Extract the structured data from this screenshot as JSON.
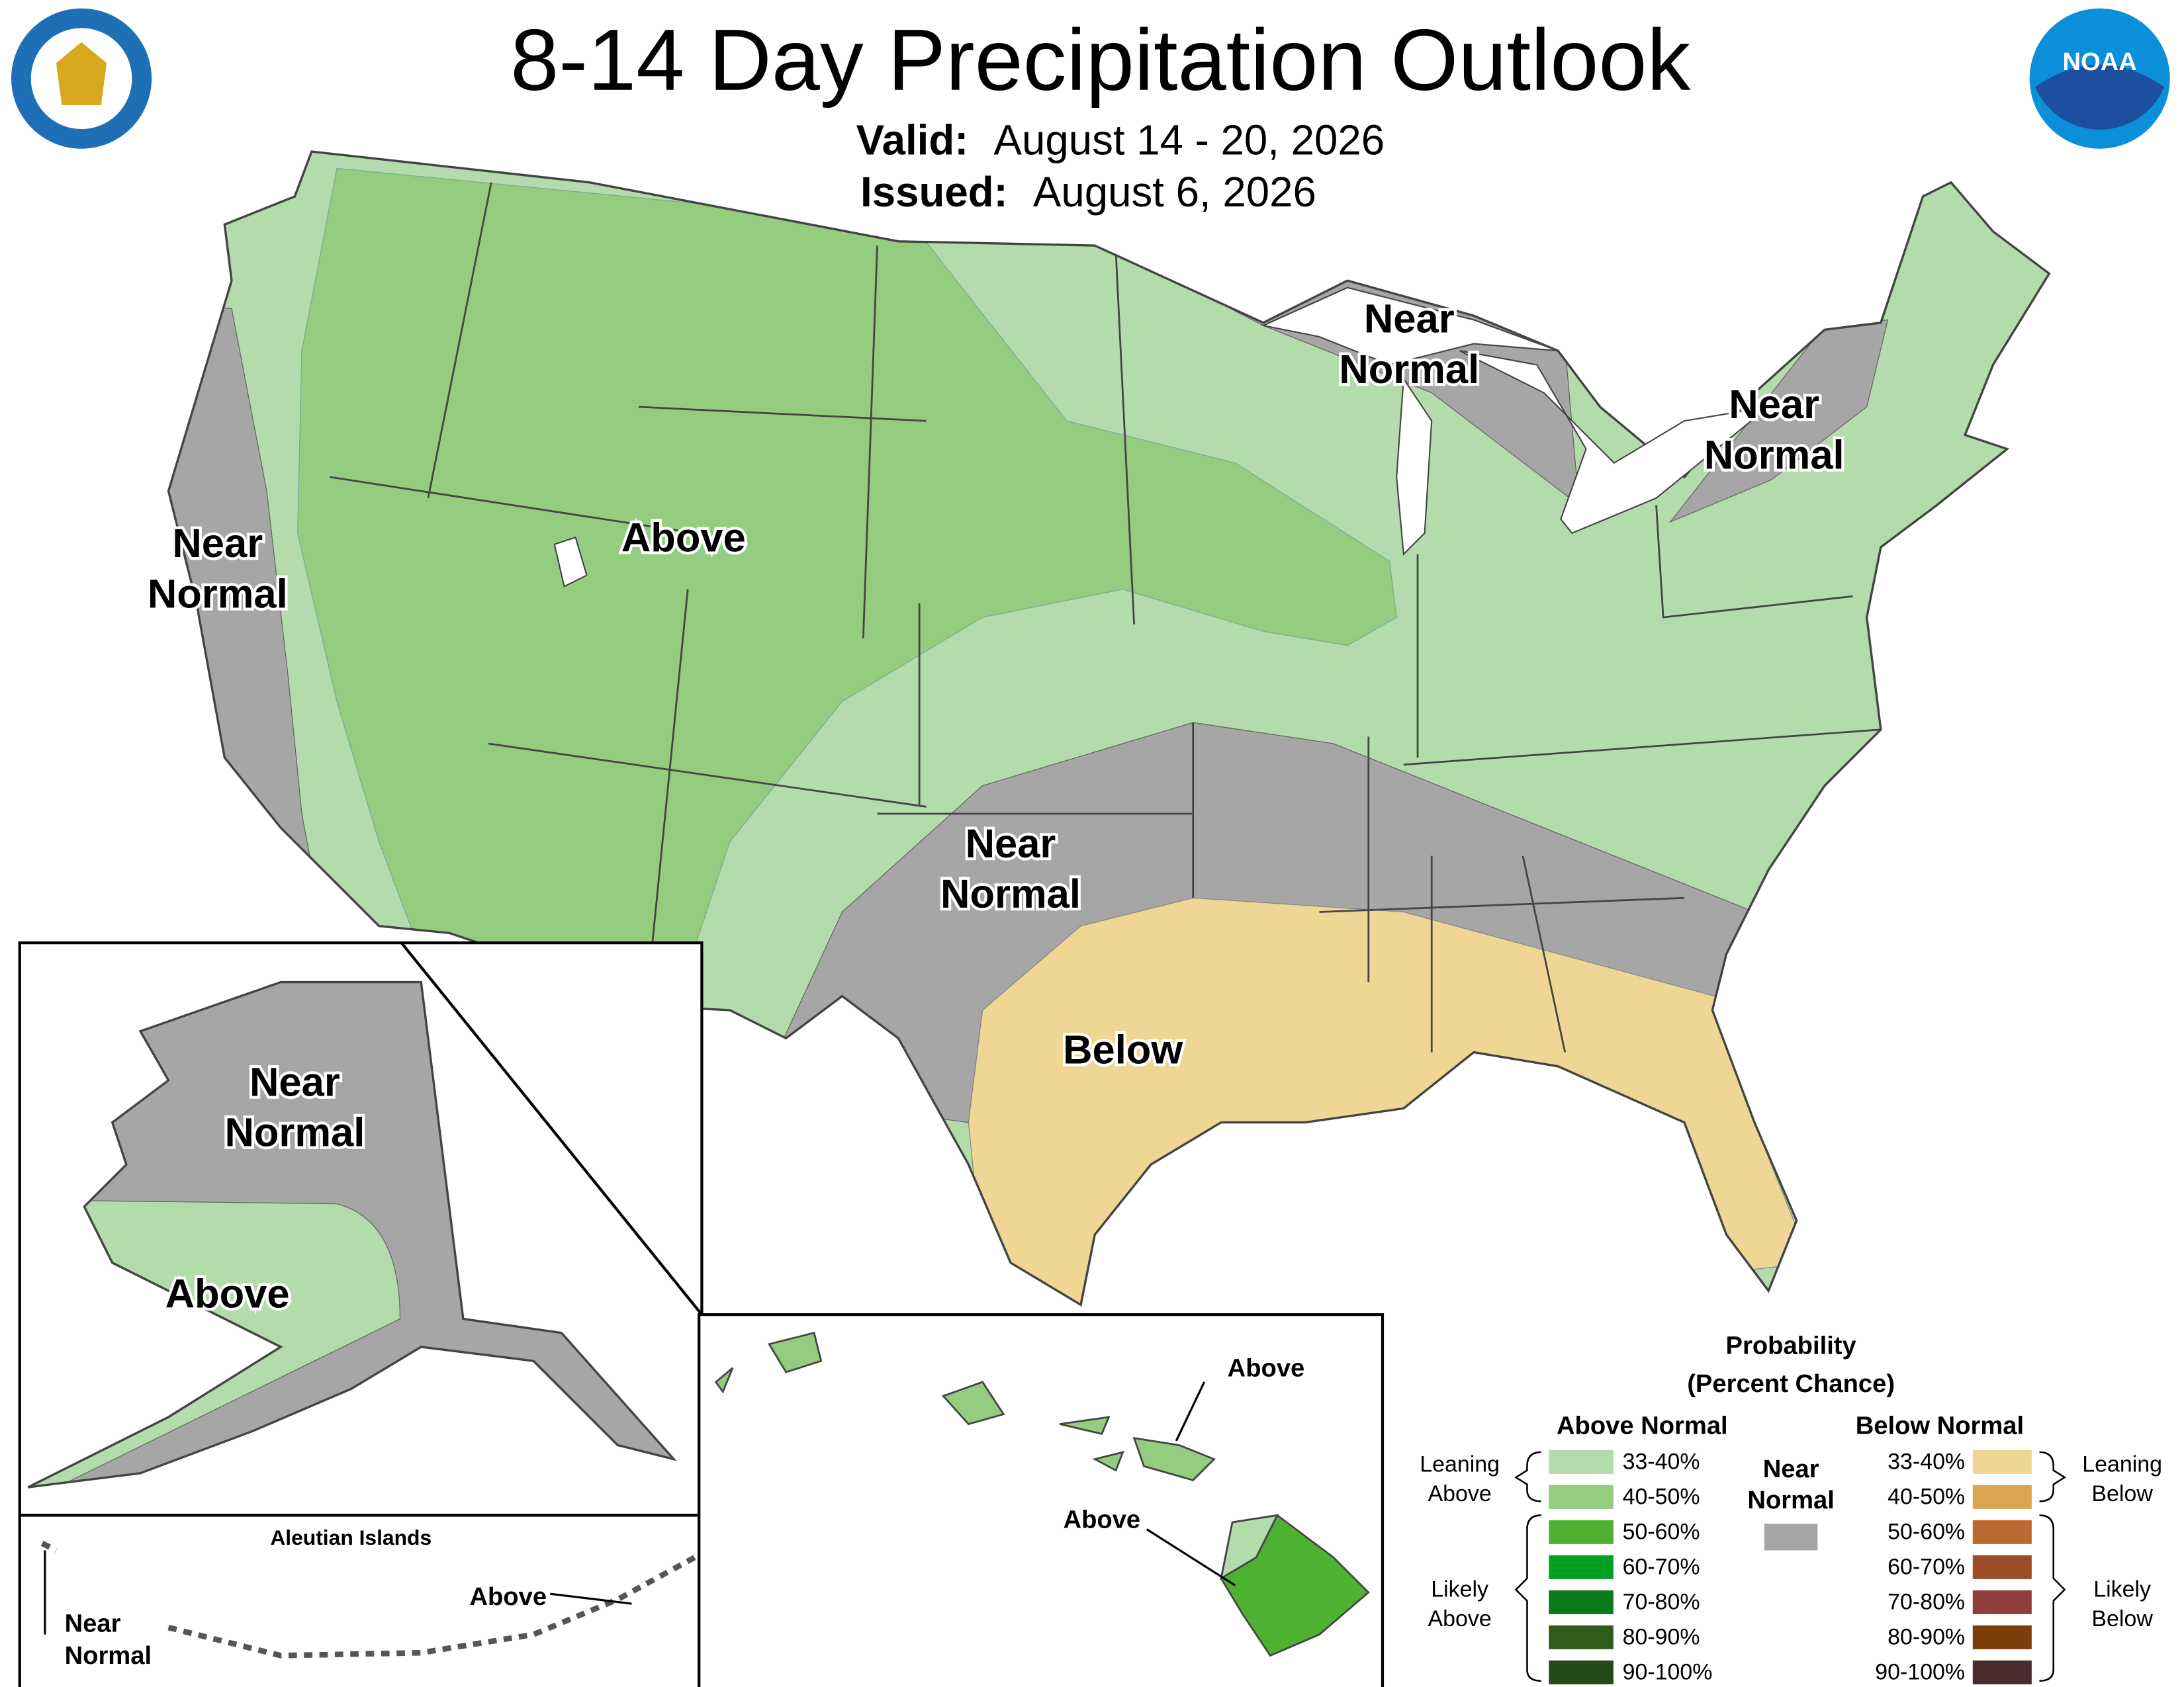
{
  "header": {
    "title": "8-14 Day Precipitation Outlook",
    "valid_label": "Valid:",
    "valid": "August 14 - 20, 2026",
    "issued_label": "Issued:",
    "issued": "August 6, 2026"
  },
  "logos": {
    "noaa": "NOAA"
  },
  "map_labels": {
    "conus": [
      {
        "lines": [
          "Near",
          "Normal"
        ]
      },
      {
        "lines": [
          "Above"
        ]
      },
      {
        "lines": [
          "Near",
          "Normal"
        ]
      },
      {
        "lines": [
          "Near",
          "Normal"
        ]
      },
      {
        "lines": [
          "Near",
          "Normal"
        ]
      },
      {
        "lines": [
          "Below"
        ]
      }
    ],
    "alaska": [
      {
        "lines": [
          "Near",
          "Normal"
        ]
      },
      {
        "lines": [
          "Above"
        ]
      }
    ],
    "aleutians": {
      "title": "Aleutian Islands",
      "labels": [
        {
          "lines": [
            "Near",
            "Normal"
          ]
        },
        {
          "lines": [
            "Above"
          ]
        }
      ]
    },
    "hawaii": [
      {
        "lines": [
          "Above"
        ]
      },
      {
        "lines": [
          "Above"
        ]
      }
    ]
  },
  "legend": {
    "title": [
      "Probability",
      "(Percent Chance)"
    ],
    "above_title": "Above Normal",
    "below_title": "Below Normal",
    "near_label": [
      "Near",
      "Normal"
    ],
    "near_color": "#a6a6a6",
    "leaning_above": [
      "Leaning",
      "Above"
    ],
    "likely_above": [
      "Likely",
      "Above"
    ],
    "leaning_below": [
      "Leaning",
      "Below"
    ],
    "likely_below": [
      "Likely",
      "Below"
    ],
    "above_ranges": [
      {
        "label": "33-40%",
        "color": "#b3dbab"
      },
      {
        "label": "40-50%",
        "color": "#94cd7f"
      },
      {
        "label": "50-60%",
        "color": "#4db232"
      },
      {
        "label": "60-70%",
        "color": "#03a024"
      },
      {
        "label": "70-80%",
        "color": "#0a7a1c"
      },
      {
        "label": "80-90%",
        "color": "#2f5d1c"
      },
      {
        "label": "90-100%",
        "color": "#254a18"
      }
    ],
    "below_ranges": [
      {
        "label": "33-40%",
        "color": "#f0d695"
      },
      {
        "label": "40-50%",
        "color": "#d9a54f"
      },
      {
        "label": "50-60%",
        "color": "#bb6a30"
      },
      {
        "label": "60-70%",
        "color": "#9b4d2a"
      },
      {
        "label": "70-80%",
        "color": "#8e3f3c"
      },
      {
        "label": "80-90%",
        "color": "#7d3f0a"
      },
      {
        "label": "90-100%",
        "color": "#4a2b2b"
      }
    ]
  }
}
